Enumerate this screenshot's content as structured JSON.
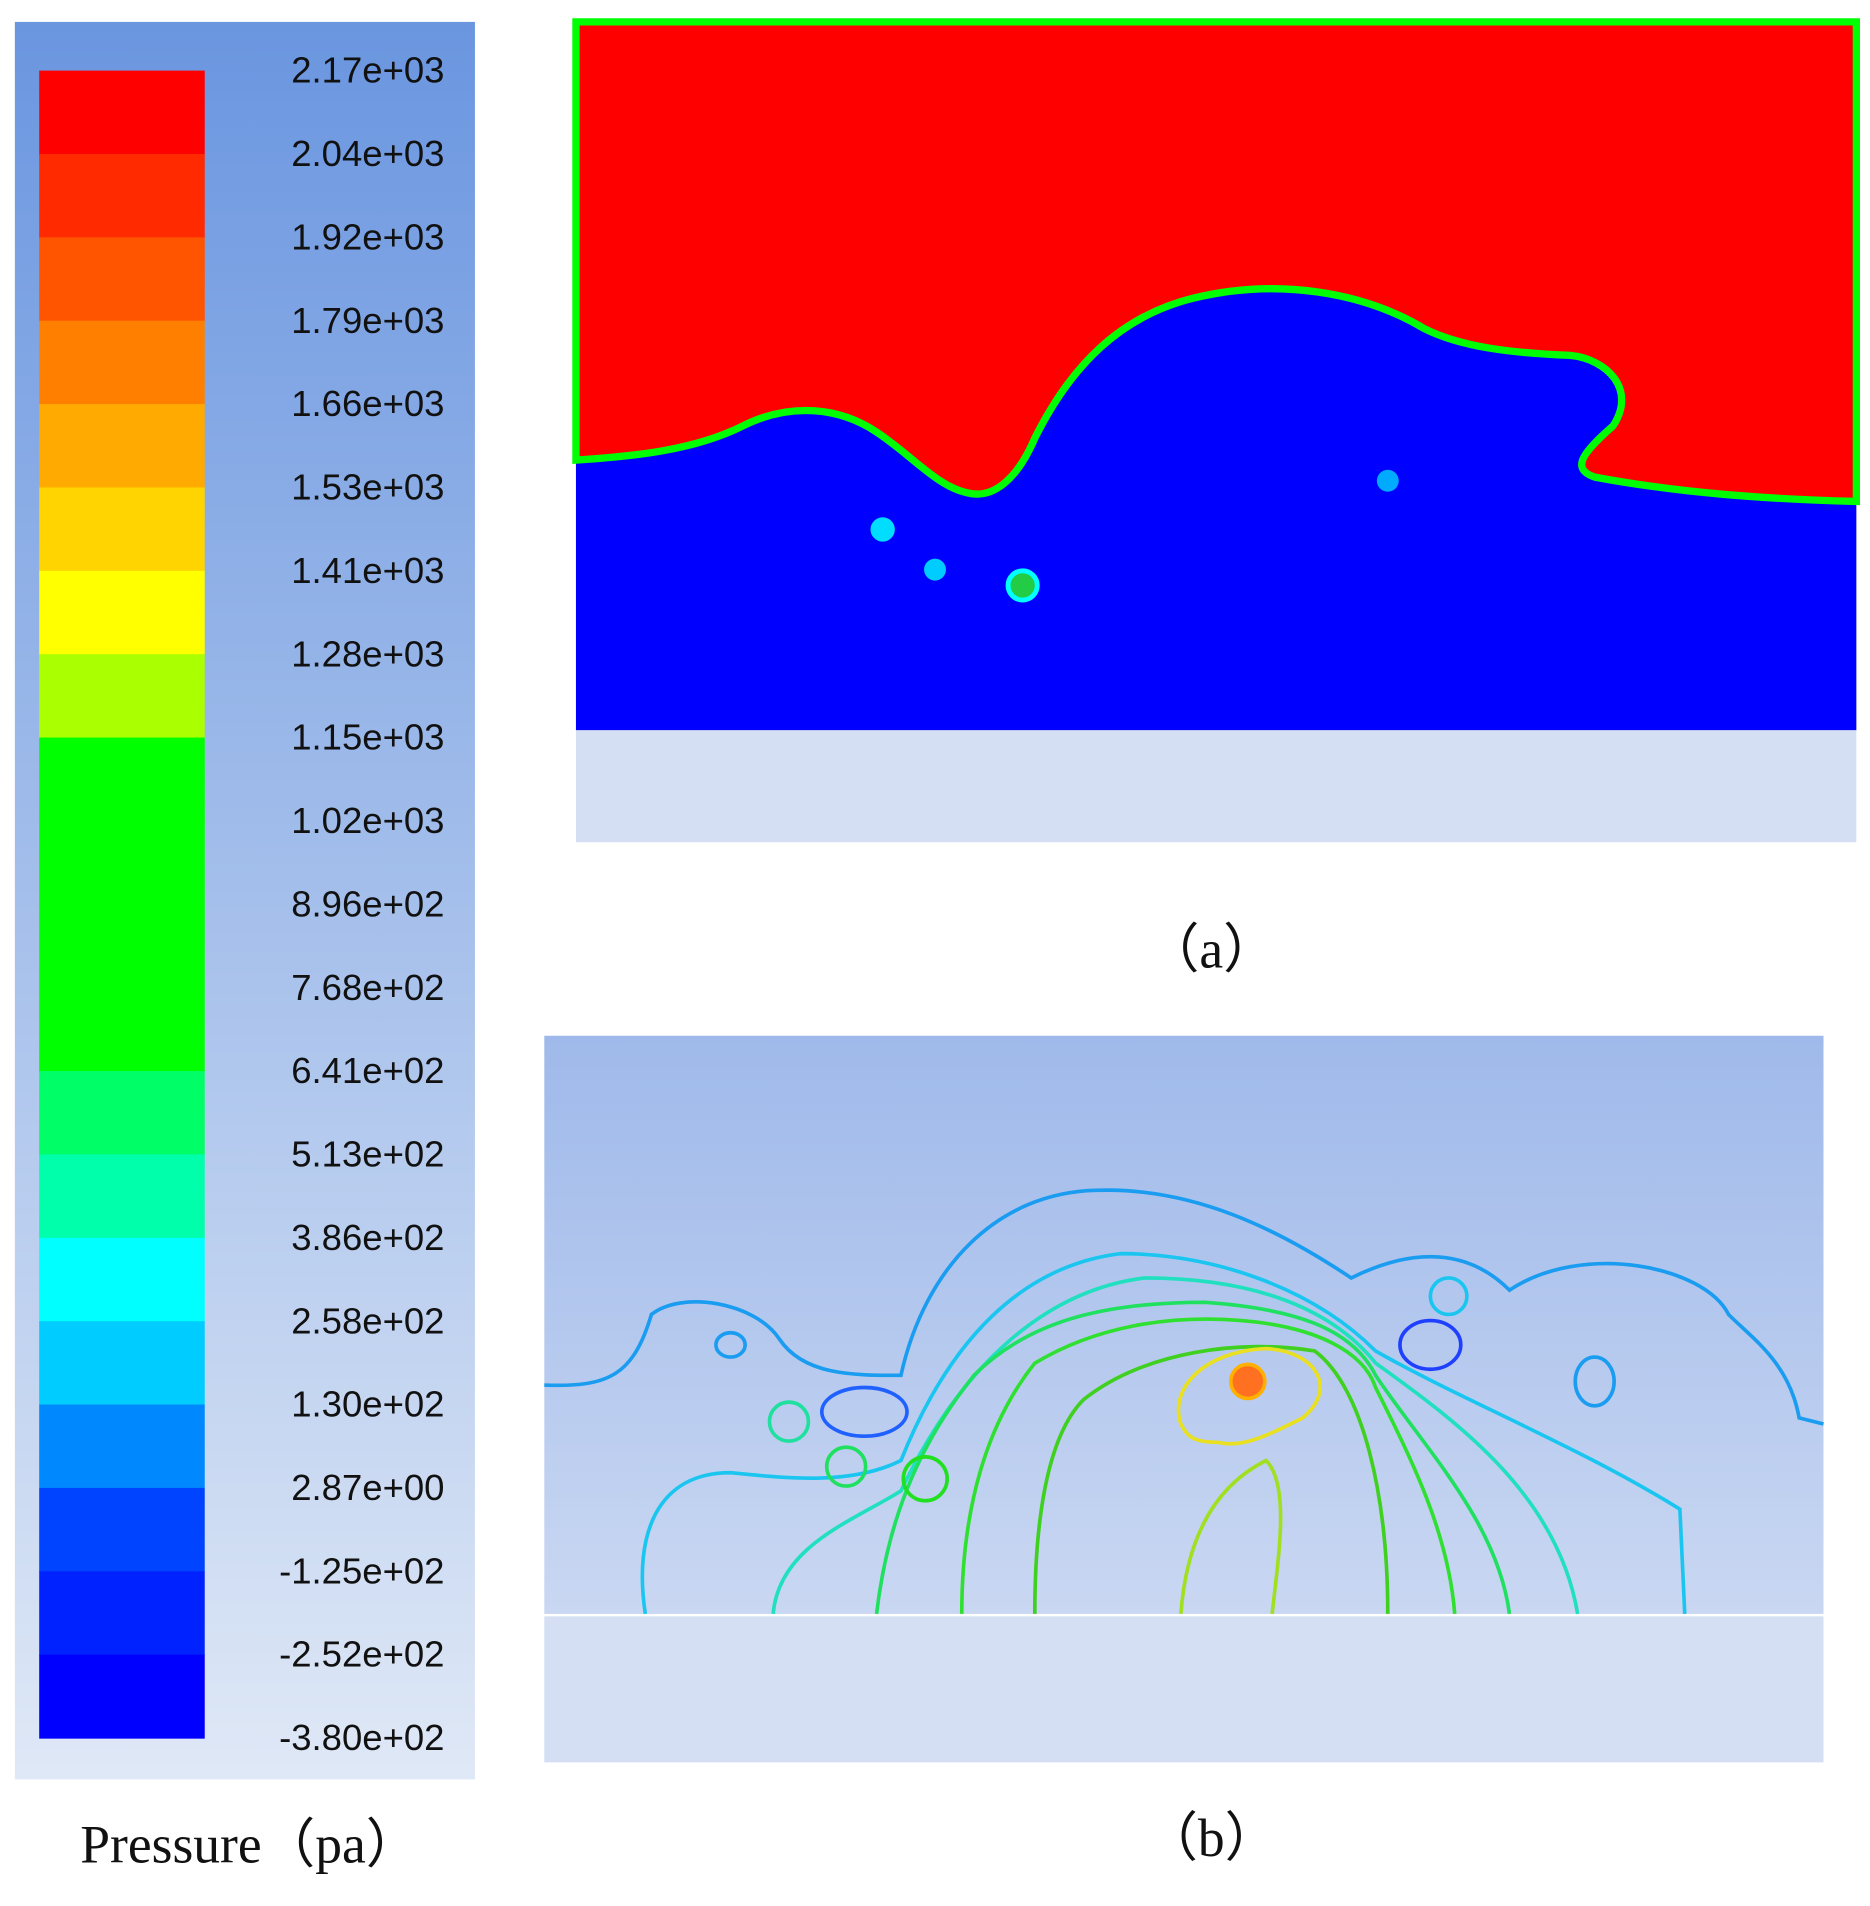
{
  "colorbar": {
    "title": "Pressure（pa）",
    "labels": [
      "2.17e+03",
      "2.04e+03",
      "1.92e+03",
      "1.79e+03",
      "1.66e+03",
      "1.53e+03",
      "1.41e+03",
      "1.28e+03",
      "1.15e+03",
      "1.02e+03",
      "8.96e+02",
      "7.68e+02",
      "6.41e+02",
      "5.13e+02",
      "3.86e+02",
      "2.58e+02",
      "1.30e+02",
      "2.87e+00",
      "-1.25e+02",
      "-2.52e+02",
      "-3.80e+02"
    ],
    "colors": [
      "#ff0000",
      "#ff2a00",
      "#ff5500",
      "#ff8000",
      "#ffaa00",
      "#ffd400",
      "#ffff00",
      "#aaff00",
      "#00ff00",
      "#00ff00",
      "#00ff00",
      "#00ff00",
      "#00ff66",
      "#00ffaa",
      "#00ffff",
      "#00ccff",
      "#0088ff",
      "#0044ff",
      "#0022ff",
      "#0000ff"
    ]
  },
  "panels": [
    {
      "caption": "（a）"
    },
    {
      "caption": "（b）"
    }
  ]
}
